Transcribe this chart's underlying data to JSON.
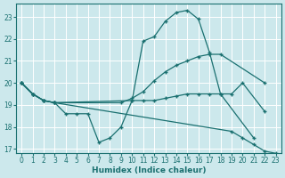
{
  "xlabel": "Humidex (Indice chaleur)",
  "bg_color": "#cce8ec",
  "line_color": "#1a7070",
  "grid_color": "#ffffff",
  "xlim": [
    -0.5,
    23.5
  ],
  "ylim": [
    16.8,
    23.6
  ],
  "yticks": [
    17,
    18,
    19,
    20,
    21,
    22,
    23
  ],
  "xticks": [
    0,
    1,
    2,
    3,
    4,
    5,
    6,
    7,
    8,
    9,
    10,
    11,
    12,
    13,
    14,
    15,
    16,
    17,
    18,
    19,
    20,
    21,
    22,
    23
  ],
  "lines": [
    {
      "x": [
        0,
        1,
        2,
        3,
        4,
        5,
        6,
        7,
        8,
        9,
        10,
        11,
        12,
        13,
        14,
        15,
        16,
        17,
        18,
        21
      ],
      "y": [
        20.0,
        19.5,
        19.2,
        19.1,
        18.6,
        18.6,
        18.6,
        17.3,
        17.5,
        18.0,
        19.2,
        21.9,
        22.1,
        22.8,
        23.2,
        23.3,
        22.9,
        21.4,
        19.5,
        17.5
      ]
    },
    {
      "x": [
        0,
        1,
        2,
        3,
        9,
        10,
        11,
        12,
        13,
        14,
        15,
        16,
        17,
        18,
        22
      ],
      "y": [
        20.0,
        19.5,
        19.2,
        19.1,
        19.1,
        19.3,
        19.6,
        20.1,
        20.5,
        20.8,
        21.0,
        21.2,
        21.3,
        21.3,
        20.0
      ]
    },
    {
      "x": [
        0,
        1,
        2,
        3,
        10,
        11,
        12,
        13,
        14,
        15,
        16,
        17,
        18,
        19,
        20,
        22
      ],
      "y": [
        20.0,
        19.5,
        19.2,
        19.1,
        19.2,
        19.2,
        19.2,
        19.3,
        19.4,
        19.5,
        19.5,
        19.5,
        19.5,
        19.5,
        20.0,
        18.7
      ]
    },
    {
      "x": [
        0,
        1,
        2,
        3,
        19,
        20,
        21,
        22,
        23
      ],
      "y": [
        20.0,
        19.5,
        19.2,
        19.1,
        17.8,
        17.5,
        17.2,
        16.9,
        16.8
      ]
    }
  ]
}
